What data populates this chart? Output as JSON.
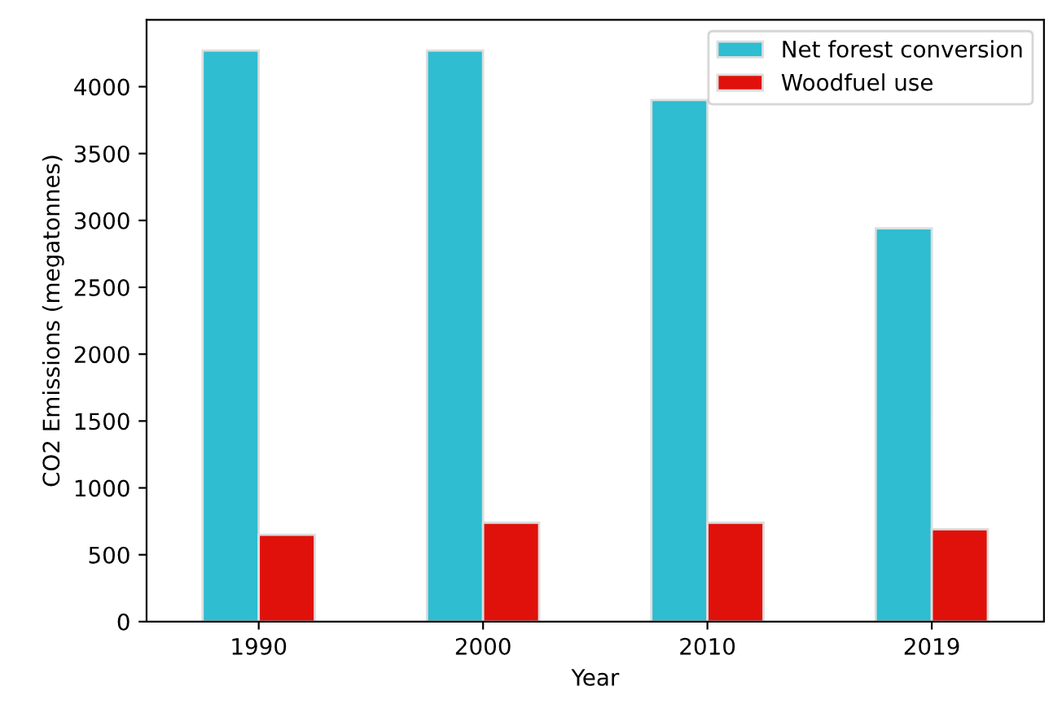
{
  "chart_data": {
    "type": "bar",
    "xlabel": "Year",
    "ylabel": "CO2 Emissions (megatonnes)",
    "categories": [
      "1990",
      "2000",
      "2010",
      "2019"
    ],
    "series": [
      {
        "name": "Net forest conversion",
        "color": "#2ebdd1",
        "values": [
          4270,
          4270,
          3900,
          2940
        ]
      },
      {
        "name": "Woodfuel use",
        "color": "#e0110b",
        "values": [
          650,
          740,
          740,
          690
        ]
      }
    ],
    "ylim": [
      0,
      4500
    ],
    "yticks": [
      0,
      500,
      1000,
      1500,
      2000,
      2500,
      3000,
      3500,
      4000
    ],
    "grid": false,
    "legend": "top right"
  }
}
